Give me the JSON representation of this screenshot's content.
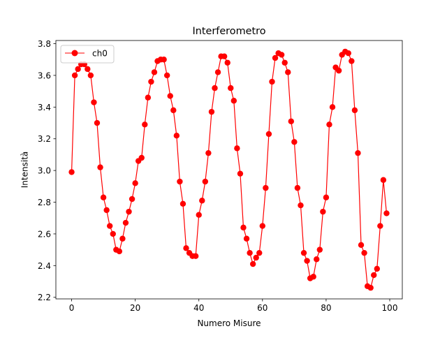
{
  "chart_data": {
    "type": "line",
    "title": "Interferometro",
    "xlabel": "Numero Misure",
    "ylabel": "Intensità",
    "xlim": [
      -4.95,
      103.95
    ],
    "ylim": [
      2.19,
      3.82
    ],
    "xticks": [
      0,
      20,
      40,
      60,
      80,
      100
    ],
    "yticks": [
      2.2,
      2.4,
      2.6,
      2.8,
      3.0,
      3.2,
      3.4,
      3.6,
      3.8
    ],
    "xtick_labels": [
      "0",
      "20",
      "40",
      "60",
      "80",
      "100"
    ],
    "ytick_labels": [
      "2.2",
      "2.4",
      "2.6",
      "2.8",
      "3.0",
      "3.2",
      "3.4",
      "3.6",
      "3.8"
    ],
    "grid": false,
    "legend": {
      "position": "upper left"
    },
    "series": [
      {
        "name": "ch0",
        "color": "#ff0000",
        "marker": "circle",
        "x": [
          0,
          1,
          2,
          3,
          4,
          5,
          6,
          7,
          8,
          9,
          10,
          11,
          12,
          13,
          14,
          15,
          16,
          17,
          18,
          19,
          20,
          21,
          22,
          23,
          24,
          25,
          26,
          27,
          28,
          29,
          30,
          31,
          32,
          33,
          34,
          35,
          36,
          37,
          38,
          39,
          40,
          41,
          42,
          43,
          44,
          45,
          46,
          47,
          48,
          49,
          50,
          51,
          52,
          53,
          54,
          55,
          56,
          57,
          58,
          59,
          60,
          61,
          62,
          63,
          64,
          65,
          66,
          67,
          68,
          69,
          70,
          71,
          72,
          73,
          74,
          75,
          76,
          77,
          78,
          79,
          80,
          81,
          82,
          83,
          84,
          85,
          86,
          87,
          88,
          89,
          90,
          91,
          92,
          93,
          94,
          95,
          96,
          97,
          98,
          99
        ],
        "values": [
          2.99,
          3.6,
          3.64,
          3.67,
          3.67,
          3.64,
          3.6,
          3.43,
          3.3,
          3.02,
          2.83,
          2.75,
          2.65,
          2.6,
          2.5,
          2.49,
          2.57,
          2.67,
          2.74,
          2.82,
          2.92,
          3.06,
          3.08,
          3.29,
          3.46,
          3.56,
          3.62,
          3.69,
          3.7,
          3.7,
          3.6,
          3.47,
          3.38,
          3.22,
          2.93,
          2.79,
          2.51,
          2.48,
          2.46,
          2.46,
          2.72,
          2.81,
          2.93,
          3.11,
          3.37,
          3.52,
          3.62,
          3.72,
          3.72,
          3.68,
          3.52,
          3.44,
          3.14,
          2.98,
          2.64,
          2.57,
          2.48,
          2.41,
          2.45,
          2.48,
          2.65,
          2.89,
          3.23,
          3.56,
          3.71,
          3.74,
          3.73,
          3.68,
          3.62,
          3.31,
          3.18,
          2.89,
          2.78,
          2.48,
          2.43,
          2.32,
          2.33,
          2.44,
          2.5,
          2.74,
          2.83,
          3.29,
          3.4,
          3.65,
          3.63,
          3.73,
          3.75,
          3.74,
          3.69,
          3.38,
          3.11,
          2.53,
          2.48,
          2.27,
          2.26,
          2.34,
          2.38,
          2.65,
          2.94,
          2.73
        ]
      }
    ]
  }
}
